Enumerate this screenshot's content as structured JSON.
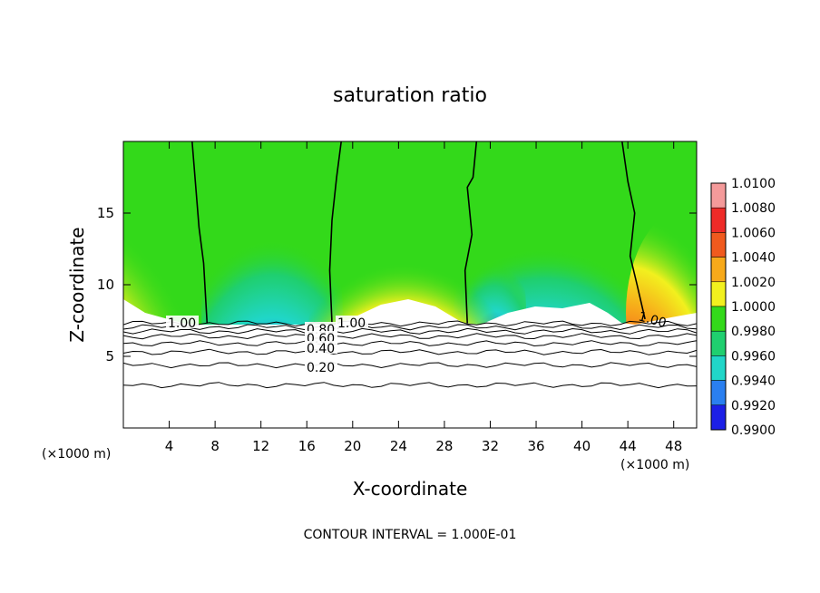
{
  "chart_data": {
    "type": "contour",
    "title": "saturation ratio",
    "xlabel": "X-coordinate",
    "ylabel": "Z-coordinate",
    "x_unit_label": "(×1000 m)",
    "xlim": [
      0,
      50
    ],
    "ylim": [
      0,
      20
    ],
    "x_ticks": [
      4,
      8,
      12,
      16,
      20,
      24,
      28,
      32,
      36,
      40,
      44,
      48
    ],
    "y_ticks": [
      5,
      10,
      15
    ],
    "footer": "CONTOUR INTERVAL = 1.000E-01",
    "colorbar": {
      "levels": [
        "1.0100",
        "1.0080",
        "1.0060",
        "1.0040",
        "1.0020",
        "1.0000",
        "0.9980",
        "0.9960",
        "0.9940",
        "0.9920",
        "0.9900"
      ],
      "colors": [
        "#f49a9a",
        "#ee2b28",
        "#f05a1e",
        "#f7a91a",
        "#f2f01e",
        "#33d91a",
        "#1fcf6f",
        "#20d6c8",
        "#2a7ff0",
        "#1c1fe6",
        "#5a1d9a"
      ]
    },
    "contour_labels": [
      {
        "text": "1.00"
      },
      {
        "text": "1.00"
      },
      {
        "text": "1.00"
      },
      {
        "text": "0.80"
      },
      {
        "text": "0.60"
      },
      {
        "text": "0.40"
      },
      {
        "text": "0.20"
      }
    ],
    "lower_contours": [
      {
        "level": 0.2,
        "z": 4.4
      },
      {
        "level": 0.3,
        "z": 3.0
      },
      {
        "level": 0.4,
        "z": 5.3
      },
      {
        "level": 0.5,
        "z": 5.9
      },
      {
        "level": 0.6,
        "z": 6.4
      },
      {
        "level": 0.7,
        "z": 6.75
      },
      {
        "level": 0.8,
        "z": 7.05
      },
      {
        "level": 0.9,
        "z": 7.3
      }
    ],
    "one_contour_lines": [
      [
        [
          6.0,
          20
        ],
        [
          6.3,
          17
        ],
        [
          6.6,
          14
        ],
        [
          7.0,
          11.5
        ],
        [
          7.3,
          7.3
        ]
      ],
      [
        [
          19.0,
          20
        ],
        [
          18.6,
          17.5
        ],
        [
          18.2,
          14.5
        ],
        [
          18.0,
          11
        ],
        [
          18.2,
          7.3
        ]
      ],
      [
        [
          30.8,
          20
        ],
        [
          30.5,
          17.5
        ],
        [
          30.0,
          16.8
        ],
        [
          30.4,
          13.5
        ],
        [
          29.8,
          11
        ],
        [
          30.0,
          7.3
        ]
      ],
      [
        [
          43.5,
          20
        ],
        [
          44.0,
          17.2
        ],
        [
          44.6,
          15
        ],
        [
          44.2,
          12
        ],
        [
          44.8,
          10
        ],
        [
          45.5,
          7.6
        ]
      ]
    ]
  }
}
